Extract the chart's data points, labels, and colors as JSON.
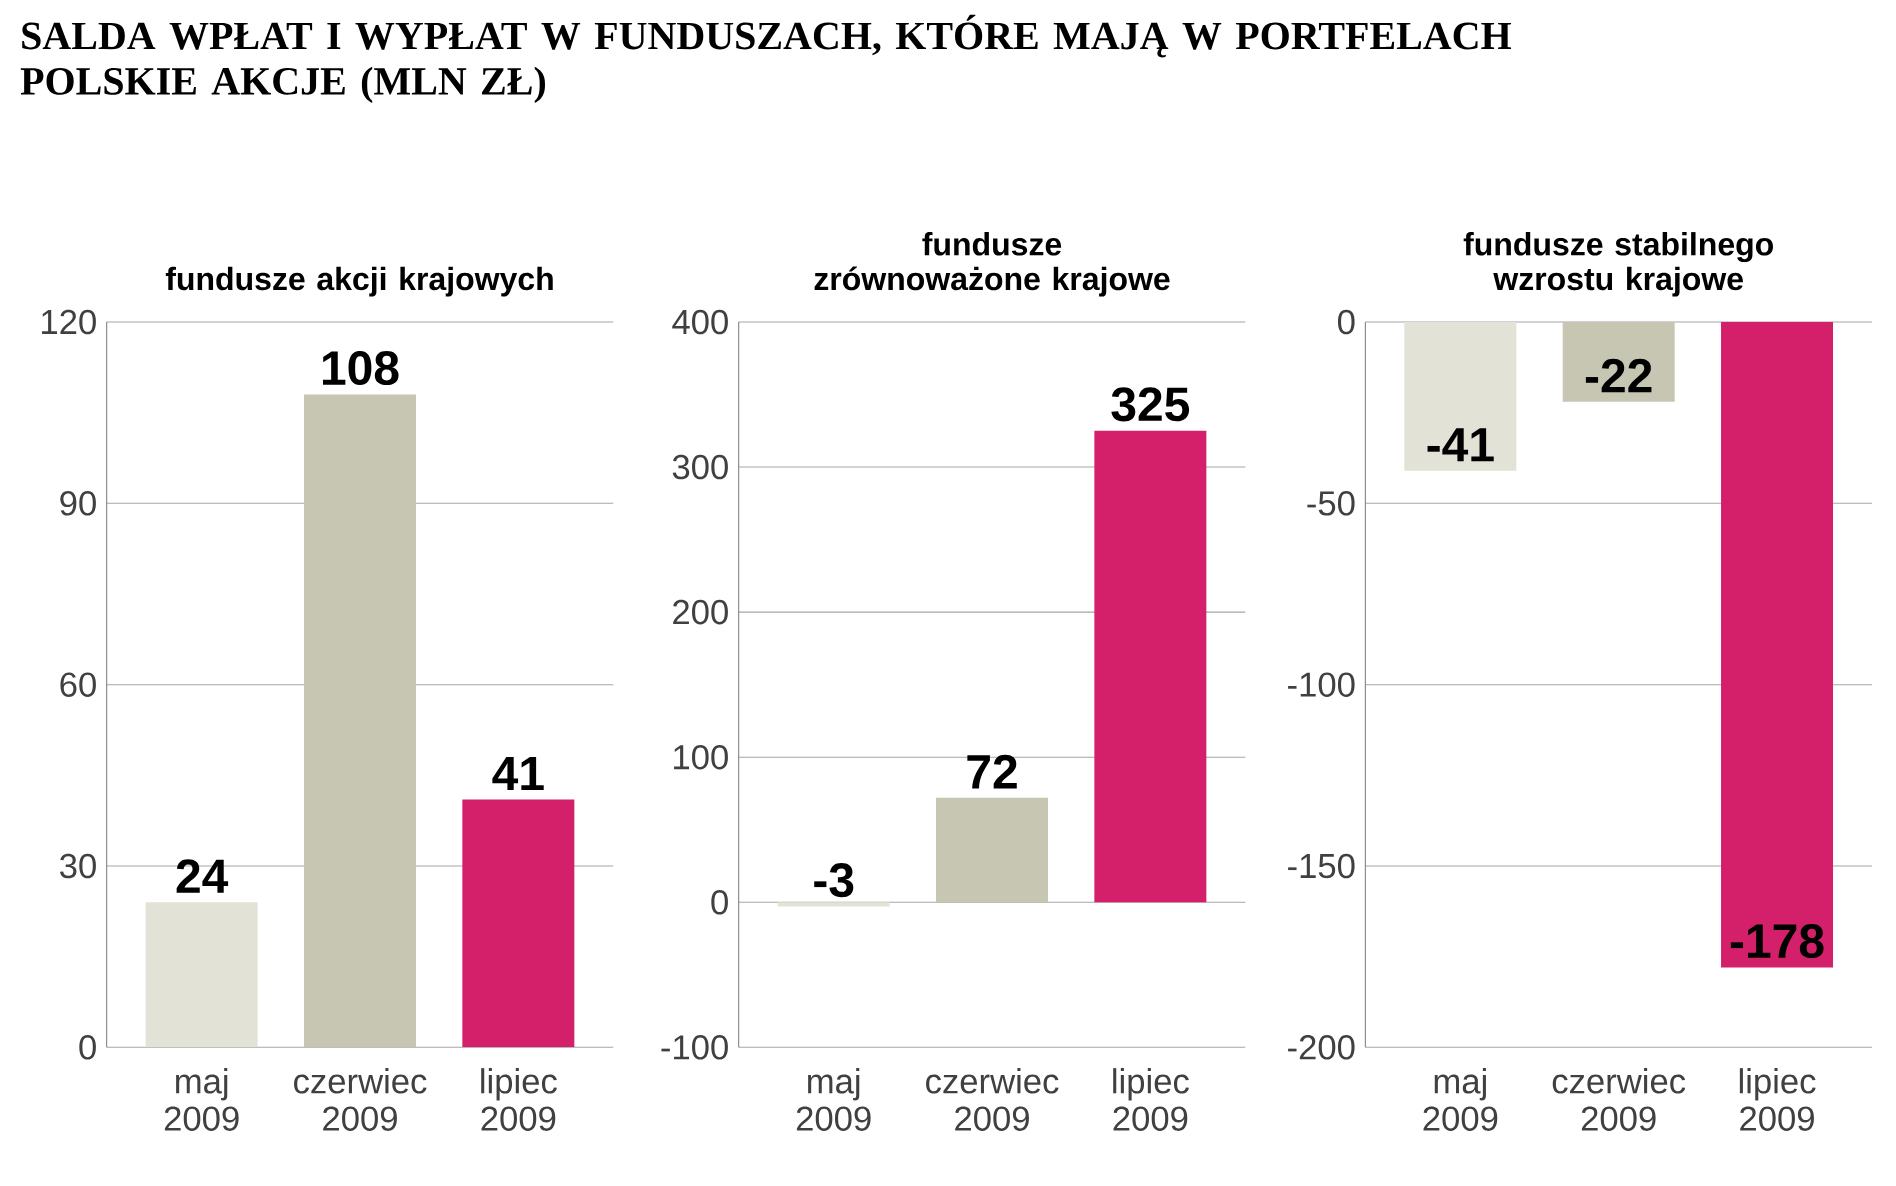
{
  "chart_data": [
    {
      "type": "bar",
      "title": "fundusze akcji krajowych",
      "annotations": [
        "SALDA WPŁAT I WYPŁAT W FUNDUSZACH, KTÓRE MAJĄ W PORTFELACH POLSKIE AKCJE (MLN ZŁ)"
      ],
      "categories": [
        "maj 2009",
        "czerwiec 2009",
        "lipiec 2009"
      ],
      "values": [
        24,
        108,
        41
      ],
      "colors": [
        "#e2e2d6",
        "#c6c6b2",
        "#d4206b"
      ],
      "ylim": [
        0,
        120
      ],
      "yticks": [
        0,
        30,
        60,
        90,
        120
      ],
      "grid": "y",
      "data_labels": true
    },
    {
      "type": "bar",
      "title": "fundusze zrównoważone krajowe",
      "categories": [
        "maj 2009",
        "czerwiec 2009",
        "lipiec 2009"
      ],
      "values": [
        -3,
        72,
        325
      ],
      "colors": [
        "#e2e2d6",
        "#c6c6b2",
        "#d4206b"
      ],
      "ylim": [
        -100,
        400
      ],
      "yticks": [
        -100,
        0,
        100,
        200,
        300,
        400
      ],
      "grid": "y",
      "data_labels": true
    },
    {
      "type": "bar",
      "title": "fundusze stabilnego wzrostu krajowe",
      "categories": [
        "maj 2009",
        "czerwiec 2009",
        "lipiec 2009"
      ],
      "values": [
        -41,
        -22,
        -178
      ],
      "colors": [
        "#e2e2d6",
        "#c6c6b2",
        "#d4206b"
      ],
      "ylim": [
        -200,
        0
      ],
      "yticks": [
        -200,
        -150,
        -100,
        -50,
        0
      ],
      "grid": "y",
      "data_labels": true
    }
  ]
}
